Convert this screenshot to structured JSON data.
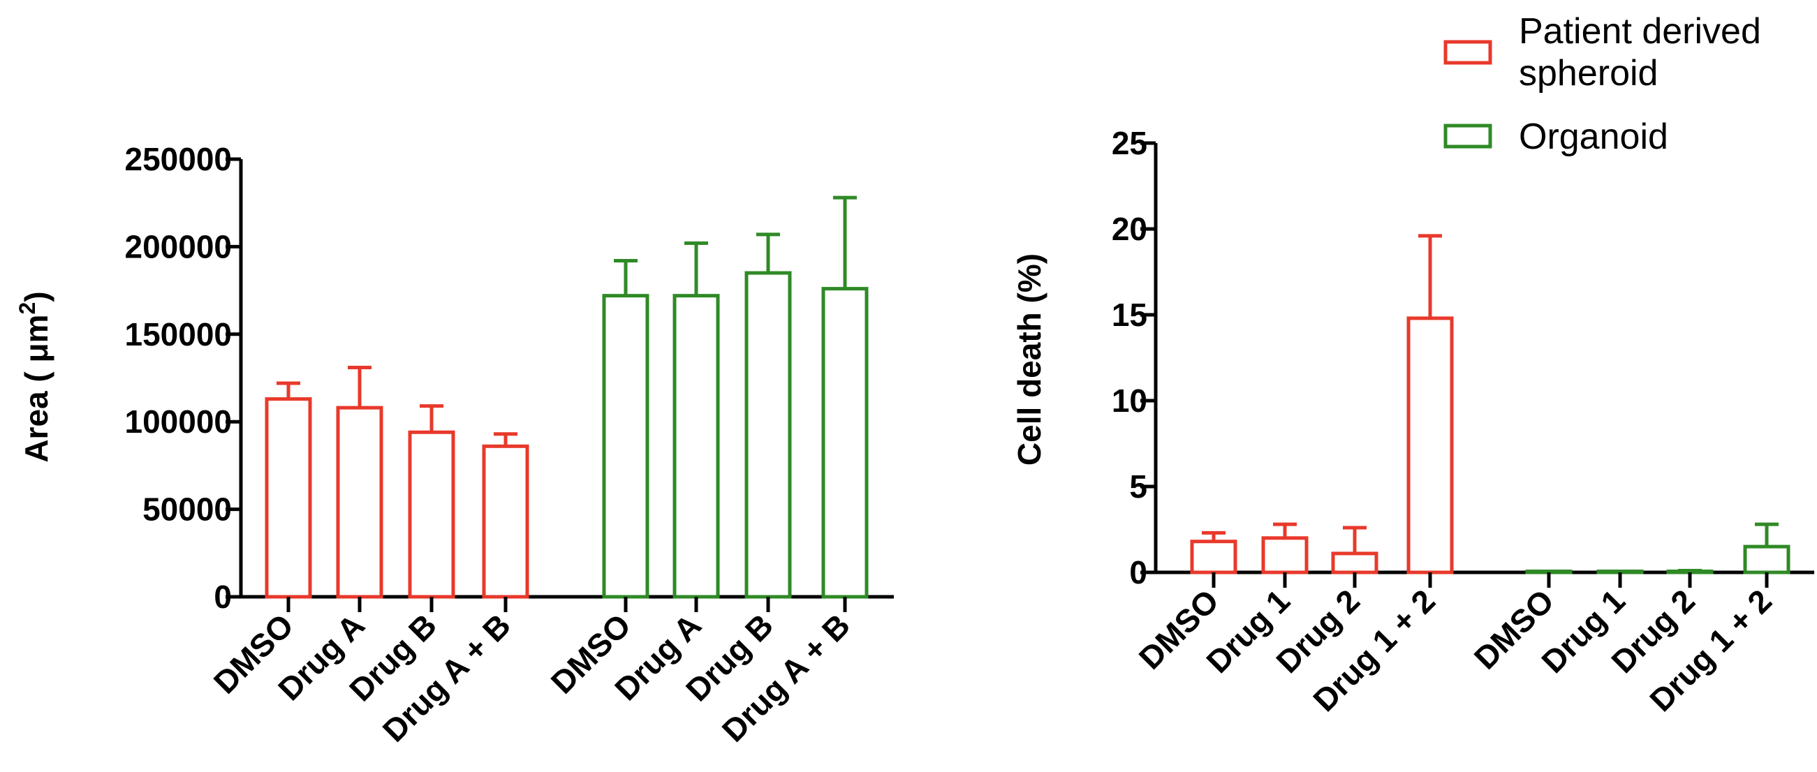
{
  "colors": {
    "spheroid": "#e8392b",
    "organoid": "#2f8a26",
    "axis": "#000000"
  },
  "legend": [
    {
      "label_line1": "Patient derived",
      "label_line2": "spheroid",
      "color": "#e8392b"
    },
    {
      "label_line1": "Organoid",
      "label_line2": "",
      "color": "#2f8a26"
    }
  ],
  "chart_data": [
    {
      "type": "bar",
      "ylabel_main": "Area ( ",
      "ylabel_unit": "μm",
      "ylabel_sup": "2",
      "ylabel_end": ")",
      "ylim": [
        0,
        250000
      ],
      "yticks": [
        "0",
        "50000",
        "100000",
        "150000",
        "200000",
        "250000"
      ],
      "groups": [
        {
          "series": "Patient derived spheroid",
          "color": "#e8392b",
          "categories": [
            "DMSO",
            "Drug A",
            "Drug B",
            "Drug A + B"
          ],
          "values": [
            113000,
            108000,
            94000,
            86000
          ],
          "errors": [
            9000,
            23000,
            15000,
            7000
          ]
        },
        {
          "series": "Organoid",
          "color": "#2f8a26",
          "categories": [
            "DMSO",
            "Drug A",
            "Drug B",
            "Drug A + B"
          ],
          "values": [
            172000,
            172000,
            185000,
            176000
          ],
          "errors": [
            20000,
            30000,
            22000,
            52000
          ]
        }
      ]
    },
    {
      "type": "bar",
      "ylabel": "Cell death (%)",
      "ylim": [
        0,
        25
      ],
      "yticks": [
        "0",
        "5",
        "10",
        "15",
        "20",
        "25"
      ],
      "groups": [
        {
          "series": "Patient derived spheroid",
          "color": "#e8392b",
          "categories": [
            "DMSO",
            "Drug 1",
            "Drug 2",
            "Drug 1 + 2"
          ],
          "values": [
            1.8,
            2.0,
            1.1,
            14.8
          ],
          "errors": [
            0.5,
            0.8,
            1.5,
            4.8
          ]
        },
        {
          "series": "Organoid",
          "color": "#2f8a26",
          "categories": [
            "DMSO",
            "Drug 1",
            "Drug 2",
            "Drug 1 + 2"
          ],
          "values": [
            0.0,
            0.0,
            0.05,
            1.5
          ],
          "errors": [
            0.05,
            0.05,
            0.05,
            1.3
          ]
        }
      ]
    }
  ]
}
